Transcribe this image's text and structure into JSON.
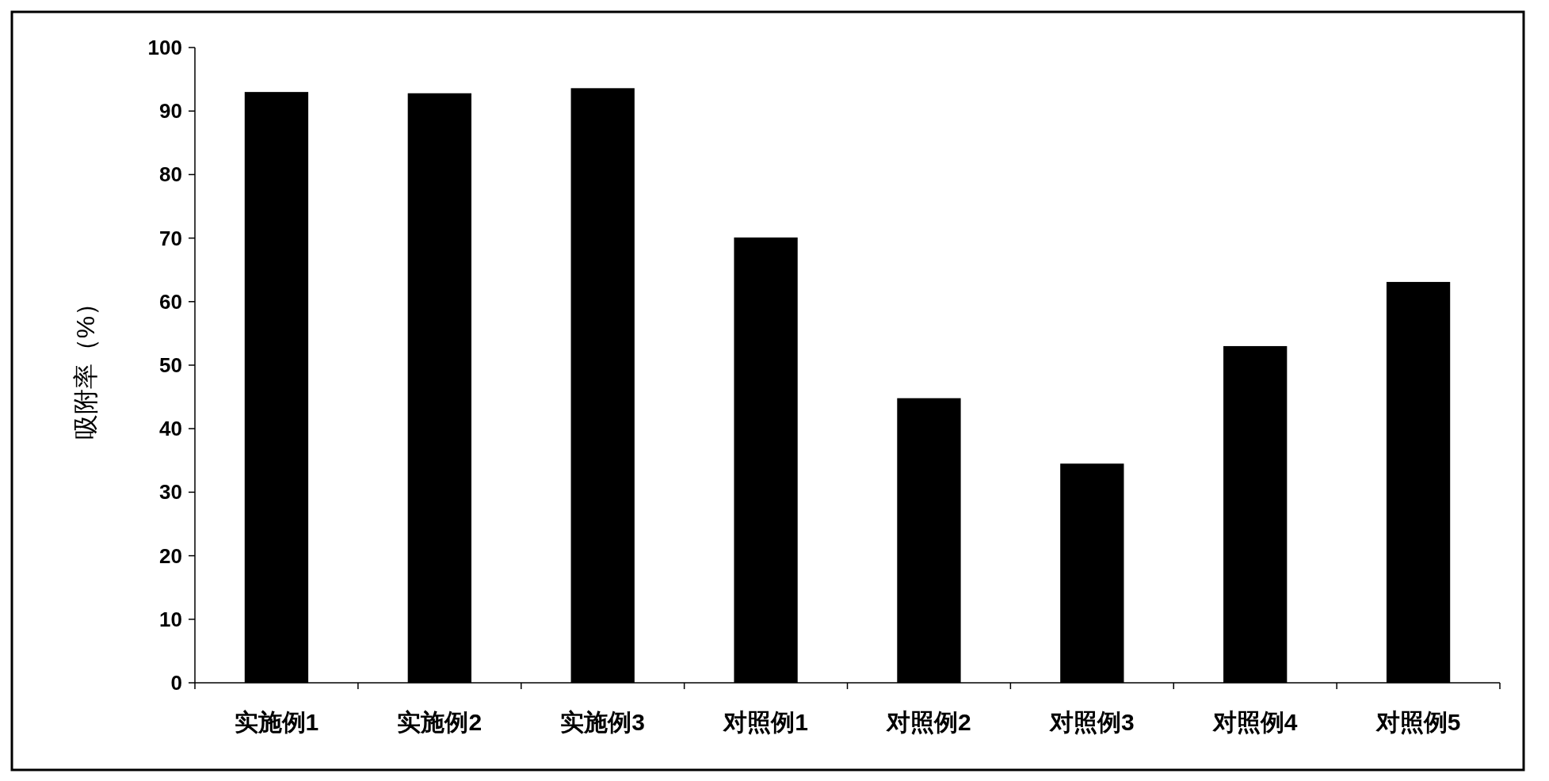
{
  "chart_data": {
    "type": "bar",
    "ylabel": "吸附率（%）",
    "categories": [
      "实施例1",
      "实施例2",
      "实施例3",
      "对照例1",
      "对照例2",
      "对照例3",
      "对照例4",
      "对照例5"
    ],
    "values": [
      93.0,
      92.8,
      93.6,
      70.1,
      44.8,
      34.5,
      53.0,
      63.1
    ],
    "color": "#000000",
    "ylim": [
      0,
      100
    ],
    "yticks": [
      0,
      10,
      20,
      30,
      40,
      50,
      60,
      70,
      80,
      90,
      100
    ],
    "grid": false
  }
}
